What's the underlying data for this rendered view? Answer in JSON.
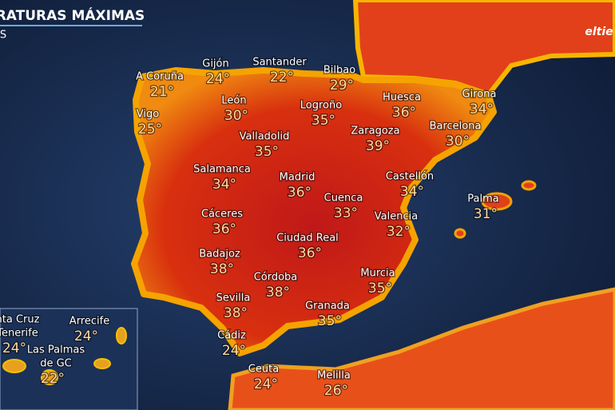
{
  "header": {
    "title": "RATURAS MÁXIMAS",
    "subtitle": "S",
    "logo": "eltie"
  },
  "cities": [
    {
      "name": "A Coruña",
      "temp": "21°"
    },
    {
      "name": "Gijón",
      "temp": "24°"
    },
    {
      "name": "Santander",
      "temp": "22°"
    },
    {
      "name": "Bilbao",
      "temp": "29°"
    },
    {
      "name": "Vigo",
      "temp": "25°"
    },
    {
      "name": "León",
      "temp": "30°"
    },
    {
      "name": "Logroño",
      "temp": "35°"
    },
    {
      "name": "Huesca",
      "temp": "36°"
    },
    {
      "name": "Girona",
      "temp": "34°"
    },
    {
      "name": "Valladolid",
      "temp": "35°"
    },
    {
      "name": "Zaragoza",
      "temp": "39°"
    },
    {
      "name": "Barcelona",
      "temp": "30°"
    },
    {
      "name": "Salamanca",
      "temp": "34°"
    },
    {
      "name": "Madrid",
      "temp": "36°"
    },
    {
      "name": "Cuenca",
      "temp": "33°"
    },
    {
      "name": "Castellón",
      "temp": "34°"
    },
    {
      "name": "Palma",
      "temp": "31°"
    },
    {
      "name": "Cáceres",
      "temp": "36°"
    },
    {
      "name": "Valencia",
      "temp": "32°"
    },
    {
      "name": "Ciudad Real",
      "temp": "36°"
    },
    {
      "name": "Badajoz",
      "temp": "38°"
    },
    {
      "name": "Murcia",
      "temp": "35°"
    },
    {
      "name": "Córdoba",
      "temp": "38°"
    },
    {
      "name": "Sevilla",
      "temp": "38°"
    },
    {
      "name": "Granada",
      "temp": "35°"
    },
    {
      "name": "Cádiz",
      "temp": "24°"
    },
    {
      "name": "Ceuta",
      "temp": "24°"
    },
    {
      "name": "Melilla",
      "temp": "26°"
    }
  ],
  "canarias": [
    {
      "name": [
        "nta Cruz",
        "Tenerife"
      ],
      "temp": "24°"
    },
    {
      "name": [
        "Arrecife"
      ],
      "temp": "24°"
    },
    {
      "name": [
        "Las Palmas",
        "de GC"
      ],
      "temp": "22°"
    }
  ]
}
